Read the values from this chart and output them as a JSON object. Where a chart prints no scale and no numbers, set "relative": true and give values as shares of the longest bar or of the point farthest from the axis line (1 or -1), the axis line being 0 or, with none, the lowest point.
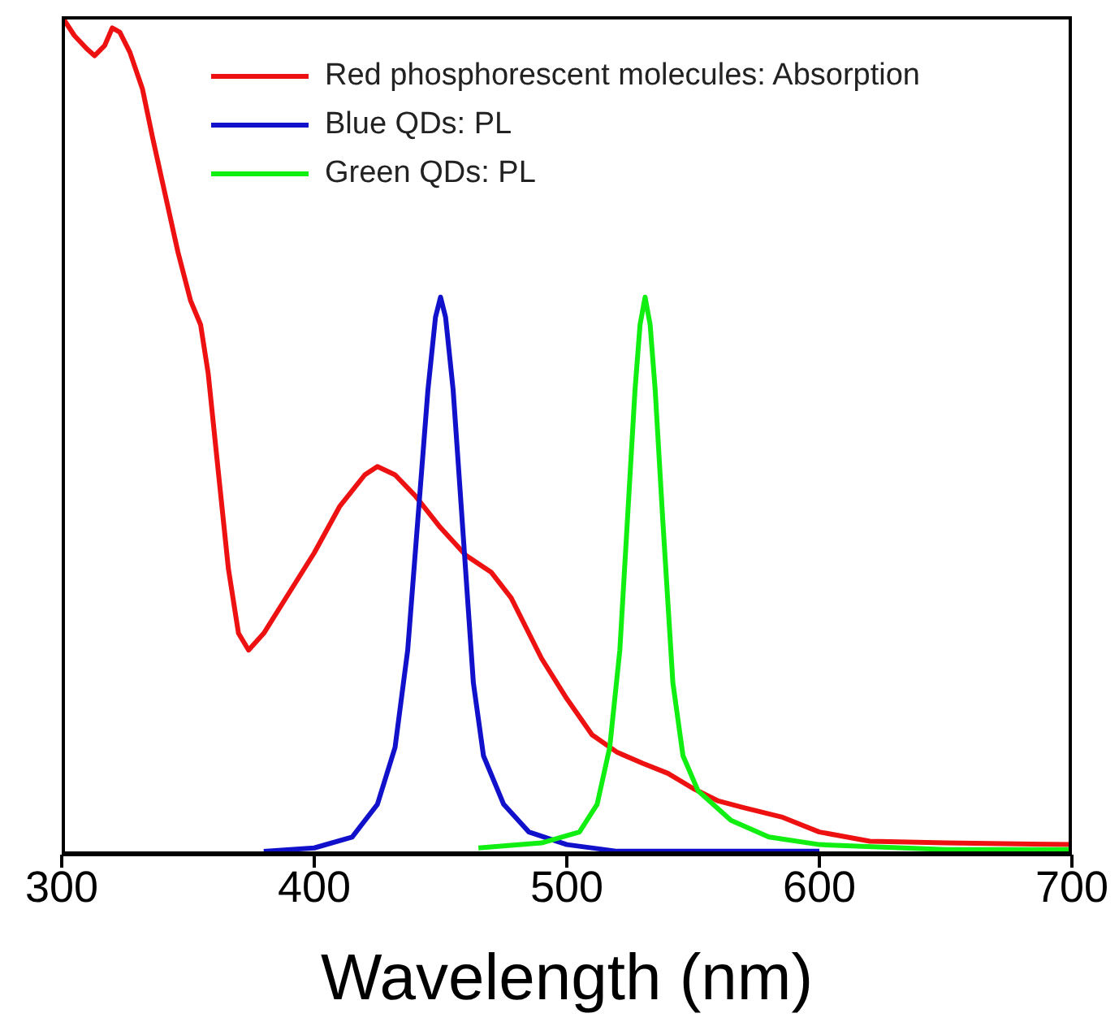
{
  "chart_data": {
    "type": "line",
    "xlabel": "Wavelength (nm)",
    "relative": true,
    "xlim": [
      300,
      700
    ],
    "xticks": [
      300,
      400,
      500,
      600,
      700
    ],
    "legend": "top right",
    "grid": false,
    "marker": "none",
    "line_style": "solid",
    "series": [
      {
        "name": "Red phosphorescent molecules: Absorption",
        "color": "#ee1111",
        "x": [
          300,
          305,
          310,
          313,
          317,
          320,
          323,
          327,
          332,
          336,
          341,
          346,
          351,
          355,
          358,
          362,
          366,
          370,
          374,
          380,
          390,
          400,
          410,
          420,
          425,
          432,
          440,
          450,
          460,
          470,
          478,
          490,
          500,
          510,
          520,
          530,
          540,
          550,
          560,
          570,
          585,
          600,
          620,
          650,
          700
        ],
        "values": [
          1.0,
          0.977,
          0.961,
          0.953,
          0.965,
          0.986,
          0.981,
          0.957,
          0.913,
          0.855,
          0.787,
          0.719,
          0.661,
          0.632,
          0.574,
          0.457,
          0.341,
          0.264,
          0.244,
          0.264,
          0.312,
          0.36,
          0.415,
          0.453,
          0.463,
          0.453,
          0.428,
          0.39,
          0.357,
          0.337,
          0.306,
          0.234,
          0.186,
          0.143,
          0.122,
          0.109,
          0.097,
          0.079,
          0.064,
          0.056,
          0.045,
          0.027,
          0.016,
          0.014,
          0.012
        ]
      },
      {
        "name": "Blue QDs: PL",
        "color": "#1111cc",
        "x": [
          380,
          400,
          415,
          425,
          432,
          437,
          441,
          445,
          448,
          450,
          452,
          455,
          459,
          463,
          467,
          475,
          485,
          500,
          520,
          600
        ],
        "values": [
          0.004,
          0.008,
          0.021,
          0.06,
          0.128,
          0.244,
          0.399,
          0.554,
          0.641,
          0.665,
          0.641,
          0.554,
          0.38,
          0.205,
          0.118,
          0.06,
          0.027,
          0.012,
          0.004,
          0.004
        ]
      },
      {
        "name": "Green QDs: PL",
        "color": "#11ee11",
        "x": [
          465,
          490,
          505,
          512,
          517,
          521,
          524,
          527,
          529,
          531,
          533,
          535,
          538,
          542,
          546,
          552,
          565,
          580,
          600,
          650,
          700
        ],
        "values": [
          0.008,
          0.014,
          0.027,
          0.06,
          0.128,
          0.244,
          0.399,
          0.554,
          0.632,
          0.665,
          0.632,
          0.554,
          0.399,
          0.205,
          0.118,
          0.076,
          0.041,
          0.021,
          0.012,
          0.006,
          0.006
        ]
      }
    ]
  }
}
